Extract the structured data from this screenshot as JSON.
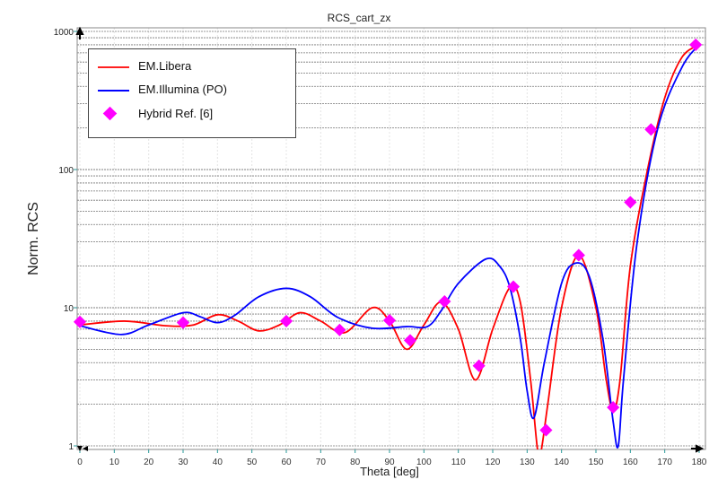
{
  "chart_data": {
    "type": "line",
    "title": "RCS_cart_zx",
    "xlabel": "Theta [deg]",
    "ylabel": "Norm. RCS",
    "xlim": [
      0,
      180
    ],
    "ylim": [
      1,
      1000
    ],
    "yscale": "log",
    "xticks": [
      0,
      10,
      20,
      30,
      40,
      50,
      60,
      70,
      80,
      90,
      100,
      110,
      120,
      130,
      140,
      150,
      160,
      170,
      180
    ],
    "yticks": [
      1,
      10,
      100,
      1000
    ],
    "grid": true,
    "legend_position": "top-left",
    "series": [
      {
        "name": "EM.Libera",
        "color": "#ff0000",
        "kind": "line",
        "x": [
          0,
          13,
          25,
          33,
          40,
          46,
          52,
          58,
          64,
          70,
          77,
          85,
          90,
          95,
          100,
          105,
          110,
          115,
          120,
          125,
          128,
          131,
          133,
          134,
          136,
          140,
          145,
          150,
          153,
          155,
          157,
          160,
          165,
          170,
          175,
          180
        ],
        "y": [
          7.5,
          8.0,
          7.4,
          7.5,
          8.9,
          8.0,
          6.8,
          7.5,
          9.2,
          8.0,
          6.6,
          10,
          8.0,
          5.0,
          7.5,
          11,
          7.0,
          3.0,
          7.0,
          14,
          11,
          3,
          0.95,
          0.9,
          2,
          10,
          24,
          10,
          3,
          1.8,
          3,
          20,
          100,
          330,
          650,
          800
        ]
      },
      {
        "name": "EM.Illumina (PO)",
        "color": "#0000ff",
        "kind": "line",
        "x": [
          0,
          12,
          20,
          30,
          35,
          40,
          45,
          52,
          60,
          67,
          75,
          85,
          95,
          101,
          105,
          110,
          118,
          122,
          125,
          128,
          130,
          132,
          135,
          140,
          144,
          148,
          152,
          155,
          156.5,
          158,
          162,
          168,
          175,
          180
        ],
        "y": [
          7.4,
          6.4,
          7.5,
          9.2,
          8.6,
          7.8,
          8.8,
          12,
          13.8,
          12,
          8.5,
          7.1,
          7.3,
          7.3,
          9.5,
          15,
          22.5,
          20,
          14,
          6,
          2.5,
          1.6,
          4,
          15,
          21,
          17,
          6,
          1.5,
          1.0,
          3,
          30,
          200,
          550,
          800
        ]
      },
      {
        "name": "Hybrid Ref. [6]",
        "color": "#ff00ff",
        "kind": "marker",
        "x": [
          0,
          30,
          60,
          75.5,
          90,
          96,
          106,
          116,
          126,
          135.5,
          145,
          155,
          160,
          166,
          179
        ],
        "y": [
          7.9,
          7.8,
          8.0,
          6.9,
          8.1,
          5.8,
          11.1,
          3.8,
          14.2,
          1.3,
          24,
          1.9,
          58,
          195,
          800
        ]
      }
    ]
  }
}
